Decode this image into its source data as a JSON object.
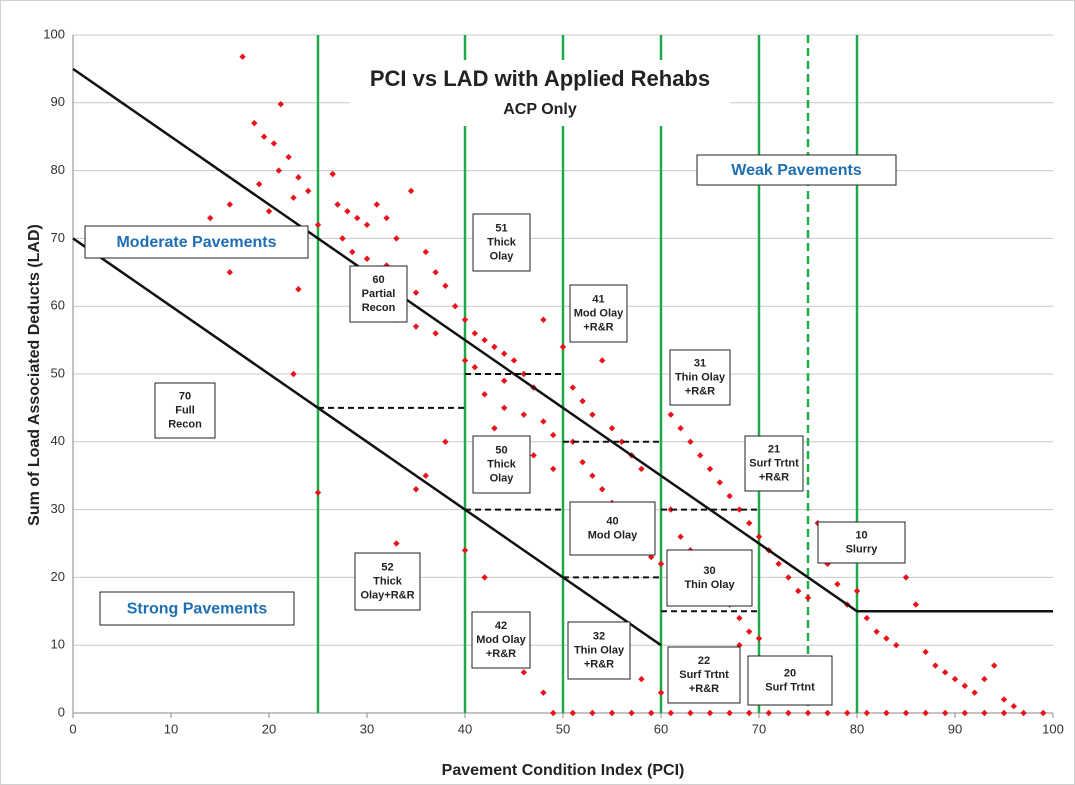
{
  "chart_data": {
    "type": "scatter",
    "title": "PCI vs LAD with Applied Rehabs",
    "subtitle": "ACP Only",
    "xlabel": "Pavement Condition Index (PCI)",
    "ylabel": "Sum of Load Associated Deducts (LAD)",
    "xlim": [
      0,
      100
    ],
    "ylim": [
      0,
      100
    ],
    "xticks": [
      0,
      10,
      20,
      30,
      40,
      50,
      60,
      70,
      80,
      90,
      100
    ],
    "yticks": [
      0,
      10,
      20,
      30,
      40,
      50,
      60,
      70,
      80,
      90,
      100
    ],
    "grid": true,
    "color": "#e8141c",
    "x": [
      17.3,
      21.2,
      18.5,
      19.5,
      20.5,
      22,
      21,
      23,
      19,
      24,
      22.5,
      20,
      14,
      25,
      16,
      16,
      23,
      22.5,
      26.5,
      27,
      28,
      29,
      30,
      31,
      32,
      33,
      34.5,
      27.5,
      28.5,
      30,
      32,
      33.5,
      35,
      36,
      37,
      38,
      29,
      31,
      33,
      35,
      37,
      39,
      40,
      41,
      42,
      43,
      44,
      45,
      46,
      47,
      48,
      44,
      41,
      40,
      42,
      44,
      46,
      48,
      49,
      43,
      45,
      47,
      49,
      50,
      51,
      52,
      53,
      54,
      55,
      56,
      57,
      58,
      51,
      52,
      53,
      54,
      55,
      56,
      57,
      58,
      59,
      60,
      61,
      62,
      63,
      64,
      65,
      66,
      67,
      68,
      69,
      61,
      62,
      63,
      64,
      65,
      66,
      67,
      68,
      69,
      70,
      71,
      72,
      73,
      74,
      75,
      76,
      77,
      78,
      79,
      80,
      81,
      82,
      83,
      84,
      85,
      86,
      87,
      88,
      89,
      90,
      91,
      92,
      93,
      94,
      95,
      96,
      38,
      36,
      35,
      33,
      25,
      40,
      42,
      44,
      46,
      48,
      52,
      54,
      56,
      58,
      60,
      62,
      64,
      66,
      68,
      70,
      72,
      74,
      49,
      51,
      53,
      55,
      57,
      59,
      61,
      63,
      65,
      67,
      69,
      71,
      73,
      75,
      77,
      79,
      81,
      83,
      85,
      87,
      89,
      91,
      93,
      95,
      97,
      99
    ],
    "y": [
      96.8,
      89.8,
      87,
      85,
      84,
      82,
      80,
      79,
      78,
      77,
      76,
      74,
      73,
      72,
      75,
      65,
      62.5,
      50,
      79.5,
      75,
      74,
      73,
      72,
      75,
      73,
      70,
      77,
      70,
      68,
      67,
      66,
      64,
      62,
      68,
      65,
      63,
      62,
      60,
      58,
      57,
      56,
      60,
      58,
      56,
      55,
      54,
      53,
      52,
      50,
      48,
      58,
      49,
      51,
      52,
      47,
      45,
      44,
      43,
      41,
      42,
      40,
      38,
      36,
      54,
      48,
      46,
      44,
      52,
      42,
      40,
      38,
      36,
      40,
      37,
      35,
      33,
      31,
      29,
      27,
      25,
      23,
      22,
      44,
      42,
      40,
      38,
      36,
      34,
      32,
      30,
      28,
      30,
      26,
      24,
      22,
      20,
      18,
      16,
      14,
      12,
      26,
      24,
      22,
      20,
      18,
      17,
      28,
      22,
      19,
      16,
      18,
      14,
      12,
      11,
      10,
      20,
      16,
      9,
      7,
      6,
      5,
      4,
      3,
      5,
      7,
      2,
      1,
      40,
      35,
      33,
      25,
      32.5,
      24,
      20,
      14,
      6,
      3,
      12,
      10,
      8,
      5,
      3,
      9,
      7,
      5,
      10,
      11,
      8,
      6,
      0,
      0,
      0,
      0,
      0,
      0,
      0,
      0,
      0,
      0,
      0,
      0,
      0,
      0,
      0,
      0,
      0,
      0,
      0,
      0,
      0,
      0,
      0,
      0,
      0,
      0
    ],
    "reference_lines": [
      {
        "x": [
          0,
          80,
          100
        ],
        "y": [
          95,
          15,
          15
        ]
      },
      {
        "x": [
          0,
          60
        ],
        "y": [
          70,
          10
        ]
      }
    ],
    "vlines": [
      {
        "x": 25
      },
      {
        "x": 40
      },
      {
        "x": 50
      },
      {
        "x": 60
      },
      {
        "x": 70
      },
      {
        "x": 75,
        "dashed": true
      },
      {
        "x": 80
      }
    ],
    "dashed_segments": [
      {
        "y": 45,
        "x": [
          25,
          40
        ]
      },
      {
        "y": 50,
        "x": [
          40,
          50
        ]
      },
      {
        "y": 30,
        "x": [
          40,
          50
        ]
      },
      {
        "y": 40,
        "x": [
          50,
          60
        ]
      },
      {
        "y": 20,
        "x": [
          50,
          60
        ]
      },
      {
        "y": 30,
        "x": [
          60,
          70
        ]
      },
      {
        "y": 15,
        "x": [
          60,
          70
        ]
      }
    ],
    "regions": [
      "Moderate Pavements",
      "Strong Pavements",
      "Weak Pavements"
    ],
    "annotations": [
      {
        "lines": [
          "70",
          "Full",
          "Recon"
        ]
      },
      {
        "lines": [
          "60",
          "Partial",
          "Recon"
        ]
      },
      {
        "lines": [
          "51",
          "Thick",
          "Olay"
        ]
      },
      {
        "lines": [
          "41",
          "Mod Olay",
          "+R&R"
        ]
      },
      {
        "lines": [
          "31",
          "Thin Olay",
          "+R&R"
        ]
      },
      {
        "lines": [
          "50",
          "Thick",
          "Olay"
        ]
      },
      {
        "lines": [
          "40",
          "Mod Olay"
        ]
      },
      {
        "lines": [
          "21",
          "Surf Trtnt",
          "+R&R"
        ]
      },
      {
        "lines": [
          "10",
          "Slurry"
        ]
      },
      {
        "lines": [
          "30",
          "Thin Olay"
        ]
      },
      {
        "lines": [
          "52",
          "Thick",
          "Olay+R&R"
        ]
      },
      {
        "lines": [
          "42",
          "Mod Olay",
          "+R&R"
        ]
      },
      {
        "lines": [
          "32",
          "Thin Olay",
          "+R&R"
        ]
      },
      {
        "lines": [
          "22",
          "Surf Trtnt",
          "+R&R"
        ]
      },
      {
        "lines": [
          "20",
          "Surf Trtnt"
        ]
      }
    ]
  }
}
